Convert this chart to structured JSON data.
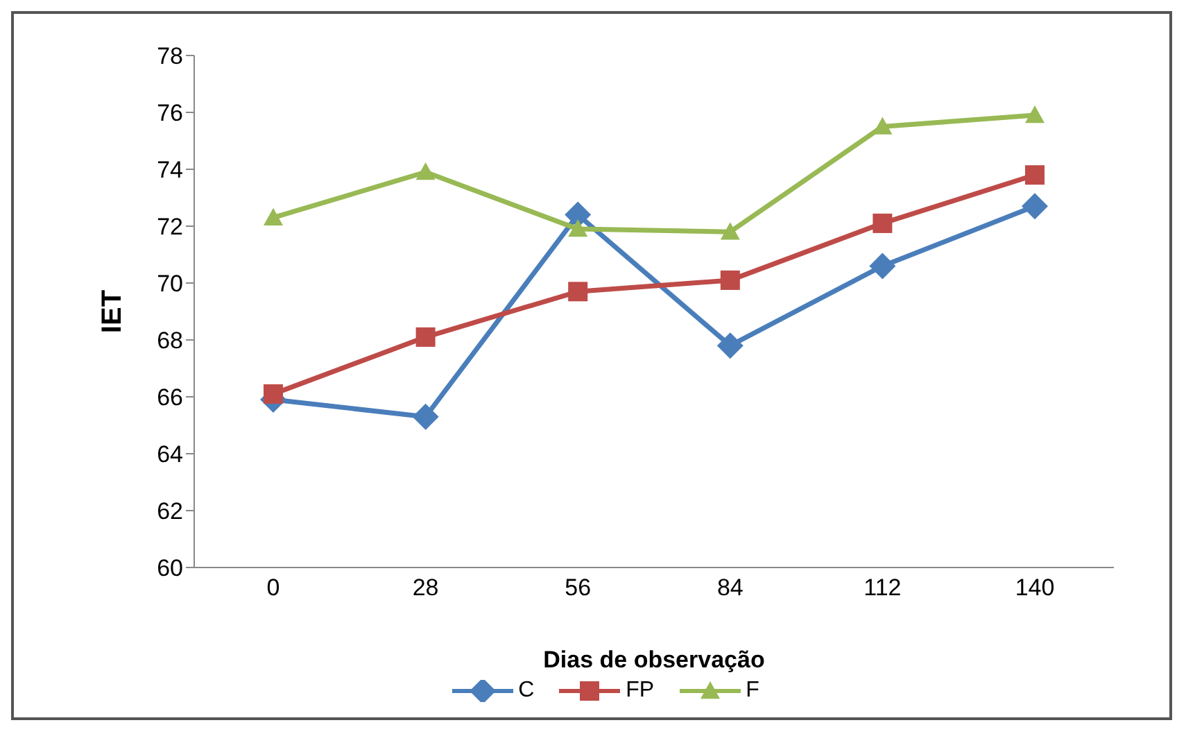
{
  "chart_data": {
    "type": "line",
    "xlabel": "Dias de observação",
    "ylabel": "IET",
    "categories": [
      "0",
      "28",
      "56",
      "84",
      "112",
      "140"
    ],
    "series": [
      {
        "name": "C",
        "color": "#4a7ebb",
        "marker": "diamond",
        "values": [
          65.9,
          65.3,
          72.4,
          67.8,
          70.6,
          72.7
        ]
      },
      {
        "name": "FP",
        "color": "#be4b48",
        "marker": "square",
        "values": [
          66.1,
          68.1,
          69.7,
          70.1,
          72.1,
          73.8
        ]
      },
      {
        "name": "F",
        "color": "#98b954",
        "marker": "triangle",
        "values": [
          72.3,
          73.9,
          71.9,
          71.8,
          75.5,
          75.9
        ]
      }
    ],
    "ylim": [
      60,
      78
    ],
    "yticks": [
      60,
      62,
      64,
      66,
      68,
      70,
      72,
      74,
      76,
      78
    ],
    "grid": false,
    "legend": "bottom"
  }
}
